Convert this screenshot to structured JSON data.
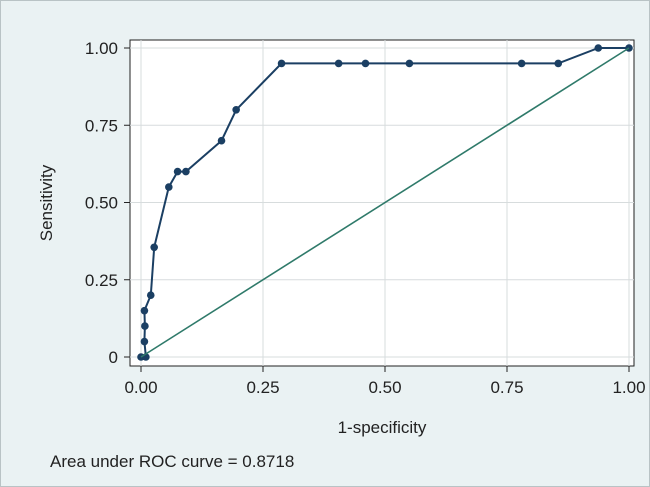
{
  "chart_data": {
    "type": "line",
    "title": "",
    "xlabel": "1-specificity",
    "ylabel": "Sensitivity",
    "xlim": [
      0,
      1
    ],
    "ylim": [
      0,
      1
    ],
    "x_ticks": [
      0,
      0.25,
      0.5,
      0.75,
      1
    ],
    "x_tick_labels": [
      "0.00",
      "0.25",
      "0.50",
      "0.75",
      "1.00"
    ],
    "y_ticks": [
      0,
      0.25,
      0.5,
      0.75,
      1
    ],
    "y_tick_labels": [
      "0",
      "0.25",
      "0.50",
      "0.75",
      "1.00"
    ],
    "grid": true,
    "legend": "none",
    "annotation": "Area under ROC curve = 0.8718",
    "series": [
      {
        "kind": "roc-curve",
        "color": "#1b3f63",
        "points": [
          [
            0.0,
            0.0
          ],
          [
            0.01,
            0.0
          ],
          [
            0.007,
            0.05
          ],
          [
            0.008,
            0.1
          ],
          [
            0.007,
            0.15
          ],
          [
            0.02,
            0.2
          ],
          [
            0.027,
            0.355
          ],
          [
            0.057,
            0.55
          ],
          [
            0.075,
            0.6
          ],
          [
            0.092,
            0.6
          ],
          [
            0.165,
            0.7
          ],
          [
            0.195,
            0.8
          ],
          [
            0.288,
            0.95
          ],
          [
            0.405,
            0.95
          ],
          [
            0.46,
            0.95
          ],
          [
            0.55,
            0.95
          ],
          [
            0.78,
            0.95
          ],
          [
            0.855,
            0.95
          ],
          [
            0.937,
            1.0
          ],
          [
            1.0,
            1.0
          ]
        ]
      },
      {
        "kind": "reference-line",
        "color": "#2f7a6a",
        "points": [
          [
            0,
            0
          ],
          [
            1,
            1
          ]
        ]
      }
    ]
  },
  "colors": {
    "background": "#eaf2f3",
    "plot_background": "#ffffff",
    "grid": "#d7dcdd",
    "axis": "#222222"
  }
}
